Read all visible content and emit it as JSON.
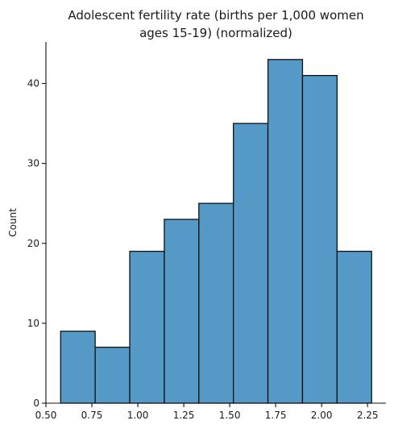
{
  "chart_data": {
    "type": "bar",
    "title_lines": [
      "Adolescent fertility rate (births per 1,000 women",
      "ages 15-19) (normalized)"
    ],
    "xlabel": "",
    "ylabel": "Count",
    "bin_edges": [
      0.58,
      0.768,
      0.956,
      1.144,
      1.332,
      1.52,
      1.708,
      1.896,
      2.084,
      2.272
    ],
    "values": [
      9,
      7,
      19,
      23,
      25,
      35,
      43,
      41,
      19
    ],
    "xlim": [
      0.5,
      2.35
    ],
    "ylim": [
      0,
      45.2
    ],
    "x_ticks": [
      0.5,
      0.75,
      1.0,
      1.25,
      1.5,
      1.75,
      2.0,
      2.25
    ],
    "x_tick_labels": [
      "0.50",
      "0.75",
      "1.00",
      "1.25",
      "1.50",
      "1.75",
      "2.00",
      "2.25"
    ],
    "y_ticks": [
      0,
      10,
      20,
      30,
      40
    ],
    "y_tick_labels": [
      "0",
      "10",
      "20",
      "30",
      "40"
    ],
    "grid": false,
    "bar_color": "#5599c7",
    "edge_color": "#111111"
  }
}
